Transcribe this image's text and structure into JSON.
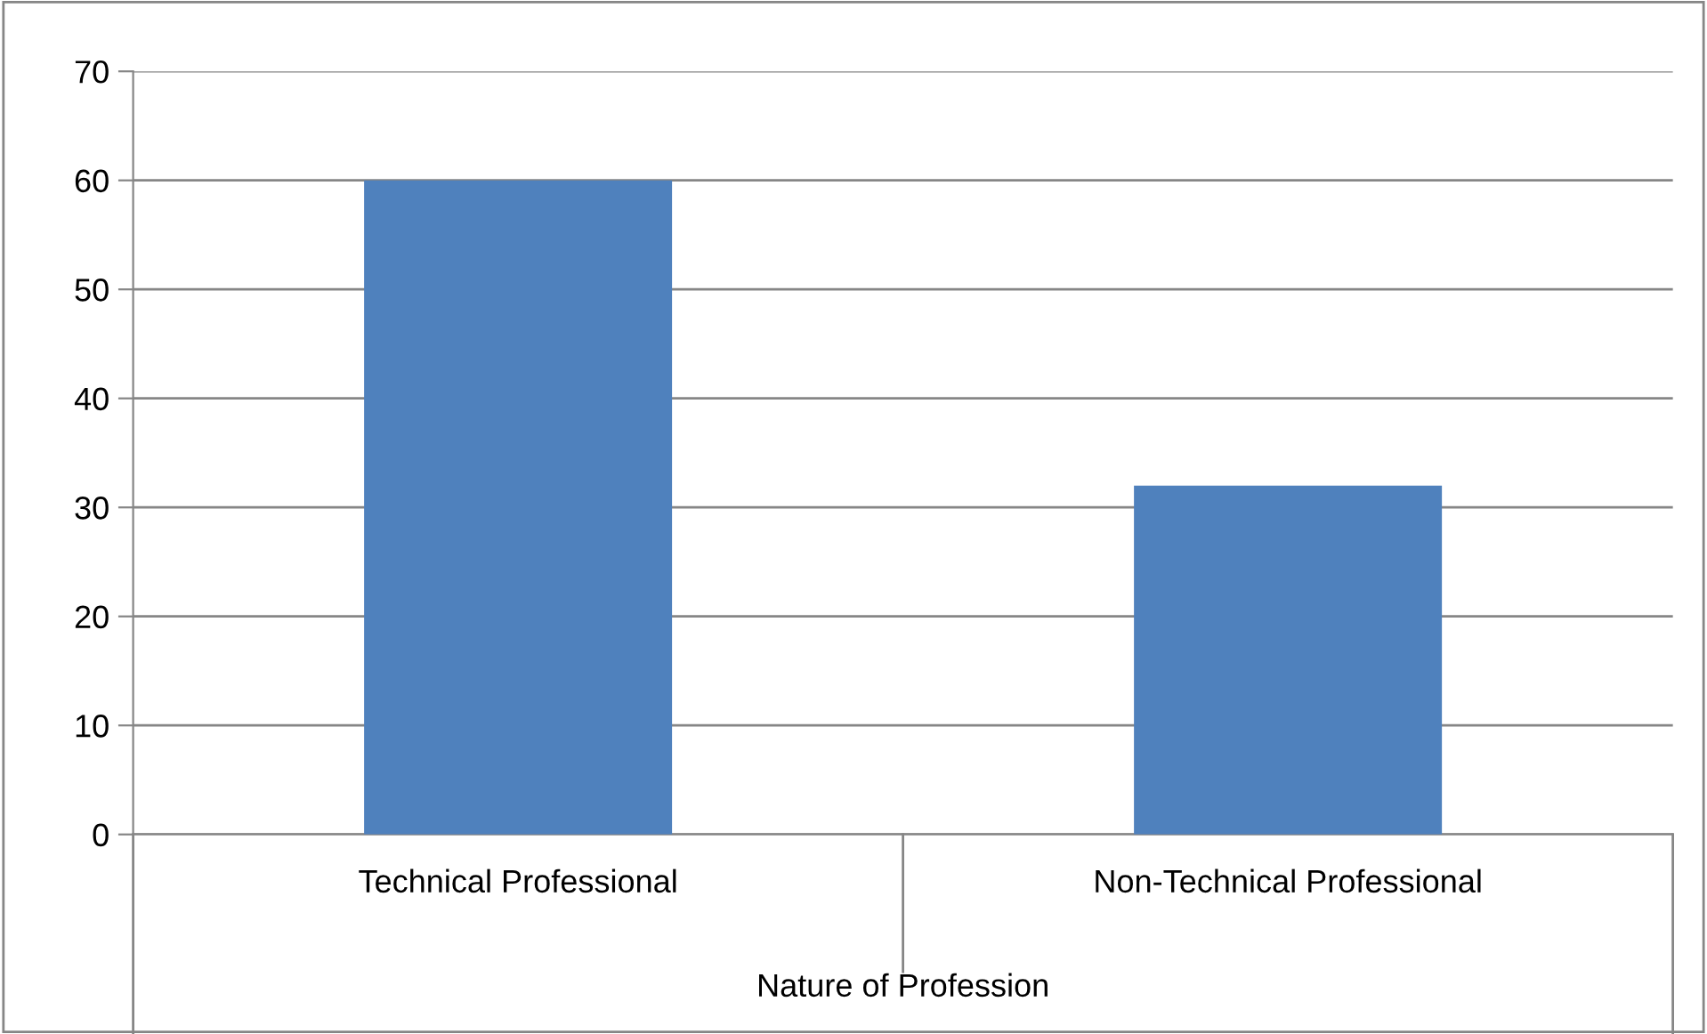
{
  "chart_data": {
    "type": "bar",
    "categories": [
      "Technical Professional",
      "Non-Technical Professional"
    ],
    "values": [
      60,
      32
    ],
    "color": "#4f81bd",
    "xlabel": "Nature of Profession",
    "ylim": [
      0,
      70
    ],
    "yticks": [
      0,
      10,
      20,
      30,
      40,
      50,
      60,
      70
    ],
    "grid": "y",
    "legend": false
  }
}
